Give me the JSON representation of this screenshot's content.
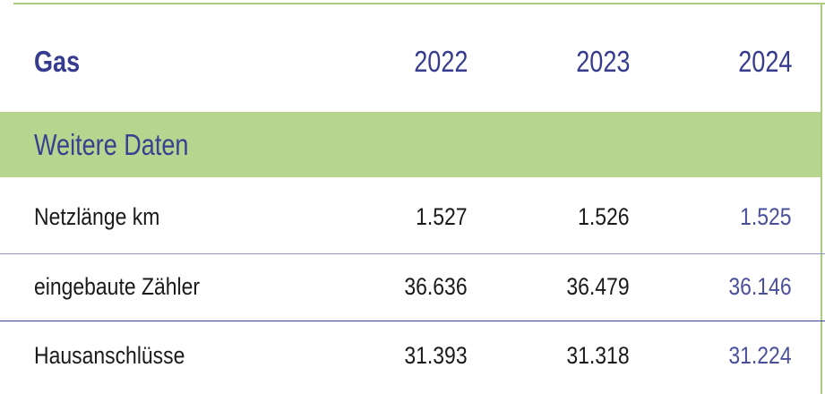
{
  "header": {
    "title": "Gas",
    "years": [
      "2022",
      "2023",
      "2024"
    ]
  },
  "section": "Weitere Daten",
  "rows": [
    [
      "Netzlänge km",
      "1.527",
      "1.526",
      "1.525"
    ],
    [
      "eingebaute Zähler",
      "36.636",
      "36.479",
      "36.146"
    ],
    [
      "Hausanschlüsse",
      "31.393",
      "31.318",
      "31.224"
    ]
  ]
}
